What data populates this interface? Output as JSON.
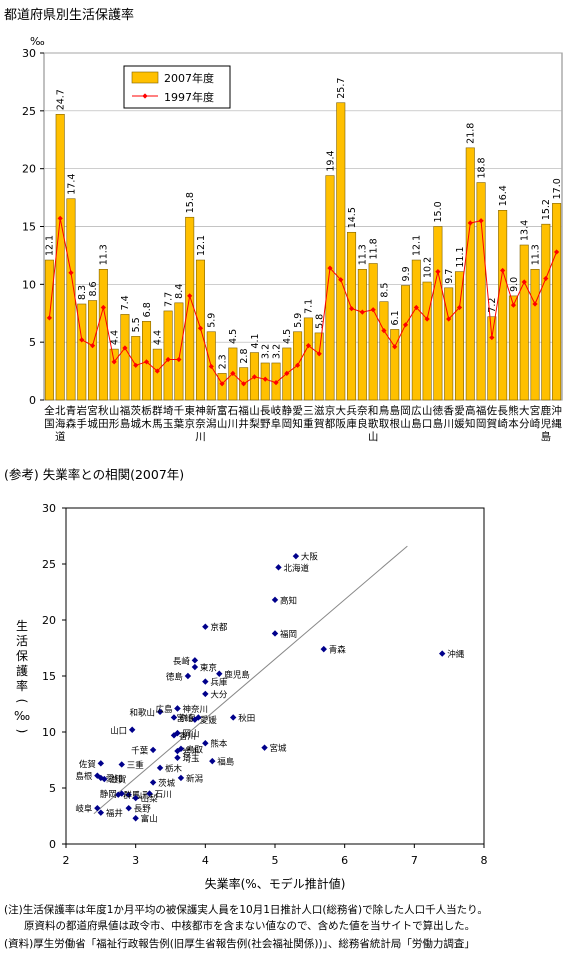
{
  "page_title": "都道府県別生活保護率",
  "reference_title": "(参考) 失業率との相関(2007年)",
  "notes": {
    "note1": "(注)生活保護率は年度1か月平均の被保護実人員を10月1日推計人口(総務省)で除した人口千人当たり。",
    "note2": "原資料の都道府県値は政令市、中核都市を含まない値なので、含めた値を当サイトで算出した。",
    "note3": "(資料)厚生労働省「福祉行政報告例(旧厚生省報告例(社会福祉関係))」、総務省統計局「労働力調査」"
  },
  "colors": {
    "bar": "#FFC000",
    "bar_stroke": "#7F6000",
    "line": "#FF0000",
    "marker": "#FF0000",
    "scatter": "#00008B",
    "trend": "#888888"
  },
  "chart_data": [
    {
      "type": "bar",
      "unit": "‰",
      "ylim": [
        0,
        30
      ],
      "yticks": [
        0,
        5,
        10,
        15,
        20,
        25,
        30
      ],
      "grid": true,
      "legend_position": "top-left",
      "categories": [
        "全国",
        "北海道",
        "青森",
        "岩手",
        "宮城",
        "秋田",
        "山形",
        "福島",
        "茨城",
        "栃木",
        "群馬",
        "埼玉",
        "千葉",
        "東京",
        "神奈川",
        "新潟",
        "富山",
        "石川",
        "福井",
        "山梨",
        "長野",
        "岐阜",
        "静岡",
        "愛知",
        "三重",
        "滋賀",
        "京都",
        "大阪",
        "兵庫",
        "奈良",
        "和歌山",
        "鳥取",
        "島根",
        "岡山",
        "広島",
        "山口",
        "徳島",
        "香川",
        "愛媛",
        "高知",
        "福岡",
        "佐賀",
        "長崎",
        "熊本",
        "大分",
        "宮崎",
        "鹿児島",
        "沖縄"
      ],
      "series": [
        {
          "name": "2007年度",
          "type": "bar",
          "values": [
            12.1,
            24.7,
            17.4,
            8.3,
            8.6,
            11.3,
            4.4,
            7.4,
            5.5,
            6.8,
            4.4,
            7.7,
            8.4,
            15.8,
            12.1,
            5.9,
            2.3,
            4.5,
            2.8,
            4.1,
            3.2,
            3.2,
            4.5,
            5.9,
            7.1,
            5.8,
            19.4,
            25.7,
            14.5,
            11.3,
            11.8,
            8.5,
            6.1,
            9.9,
            12.1,
            10.2,
            15.0,
            9.7,
            11.1,
            21.8,
            18.8,
            7.2,
            16.4,
            9.0,
            13.4,
            11.3,
            15.2,
            17.0
          ]
        },
        {
          "name": "1997年度",
          "type": "line",
          "values": [
            7.1,
            15.7,
            11.0,
            5.2,
            4.7,
            8.0,
            3.3,
            4.5,
            3.0,
            3.3,
            2.5,
            3.5,
            3.5,
            9.0,
            6.2,
            2.9,
            1.4,
            2.3,
            1.4,
            2.0,
            1.8,
            1.5,
            2.3,
            3.0,
            4.7,
            4.0,
            11.4,
            10.4,
            7.9,
            7.6,
            7.8,
            6.0,
            4.6,
            6.5,
            8.0,
            7.0,
            11.1,
            7.0,
            8.0,
            15.3,
            15.5,
            5.4,
            11.2,
            8.2,
            10.2,
            8.3,
            10.5,
            12.8
          ]
        }
      ]
    },
    {
      "type": "scatter",
      "xlabel": "失業率(%、モデル推計値)",
      "ylabel": "生活保護率(‰)",
      "xlim": [
        2,
        8
      ],
      "ylim": [
        0,
        30
      ],
      "xticks": [
        2,
        3,
        4,
        5,
        6,
        7,
        8
      ],
      "yticks": [
        0,
        5,
        10,
        15,
        20,
        25,
        30
      ],
      "trendline": {
        "x": [
          2.4,
          6.9
        ],
        "y": [
          2.7,
          26.6
        ]
      },
      "points": [
        {
          "label": "北海道",
          "x": 5.05,
          "y": 24.7
        },
        {
          "label": "青森",
          "x": 5.7,
          "y": 17.4
        },
        {
          "label": "岩手",
          "x": 3.6,
          "y": 8.3
        },
        {
          "label": "宮城",
          "x": 4.85,
          "y": 8.6
        },
        {
          "label": "秋田",
          "x": 4.4,
          "y": 11.3
        },
        {
          "label": "山形",
          "x": 2.9,
          "y": 4.4
        },
        {
          "label": "福島",
          "x": 4.1,
          "y": 7.4
        },
        {
          "label": "茨城",
          "x": 3.25,
          "y": 5.5
        },
        {
          "label": "栃木",
          "x": 3.35,
          "y": 6.8
        },
        {
          "label": "群馬",
          "x": 2.75,
          "y": 4.4
        },
        {
          "label": "埼玉",
          "x": 3.6,
          "y": 7.7
        },
        {
          "label": "千葉",
          "x": 3.25,
          "y": 8.4
        },
        {
          "label": "東京",
          "x": 3.85,
          "y": 15.8
        },
        {
          "label": "神奈川",
          "x": 3.6,
          "y": 12.1
        },
        {
          "label": "新潟",
          "x": 3.65,
          "y": 5.9
        },
        {
          "label": "富山",
          "x": 3.0,
          "y": 2.3
        },
        {
          "label": "石川",
          "x": 3.2,
          "y": 4.5
        },
        {
          "label": "福井",
          "x": 2.5,
          "y": 2.8
        },
        {
          "label": "山梨",
          "x": 3.0,
          "y": 4.1
        },
        {
          "label": "長野",
          "x": 2.9,
          "y": 3.2
        },
        {
          "label": "岐阜",
          "x": 2.45,
          "y": 3.2
        },
        {
          "label": "静岡",
          "x": 2.8,
          "y": 4.5
        },
        {
          "label": "愛知",
          "x": 2.5,
          "y": 5.9
        },
        {
          "label": "三重",
          "x": 2.8,
          "y": 7.1
        },
        {
          "label": "滋賀",
          "x": 2.55,
          "y": 5.8
        },
        {
          "label": "京都",
          "x": 4.0,
          "y": 19.4
        },
        {
          "label": "大阪",
          "x": 5.3,
          "y": 25.7
        },
        {
          "label": "兵庫",
          "x": 4.0,
          "y": 14.5
        },
        {
          "label": "奈良",
          "x": 3.55,
          "y": 11.3
        },
        {
          "label": "和歌山",
          "x": 3.35,
          "y": 11.8
        },
        {
          "label": "鳥取",
          "x": 3.65,
          "y": 8.5
        },
        {
          "label": "島根",
          "x": 2.45,
          "y": 6.1
        },
        {
          "label": "岡山",
          "x": 3.6,
          "y": 9.9
        },
        {
          "label": "広島",
          "x": 3.6,
          "y": 12.1
        },
        {
          "label": "山口",
          "x": 2.95,
          "y": 10.2
        },
        {
          "label": "徳島",
          "x": 3.75,
          "y": 15.0
        },
        {
          "label": "香川",
          "x": 3.55,
          "y": 9.7
        },
        {
          "label": "愛媛",
          "x": 3.85,
          "y": 11.1
        },
        {
          "label": "高知",
          "x": 5.0,
          "y": 21.8
        },
        {
          "label": "福岡",
          "x": 5.0,
          "y": 18.8
        },
        {
          "label": "佐賀",
          "x": 2.5,
          "y": 7.2
        },
        {
          "label": "長崎",
          "x": 3.85,
          "y": 16.4
        },
        {
          "label": "熊本",
          "x": 4.0,
          "y": 9.0
        },
        {
          "label": "大分",
          "x": 4.0,
          "y": 13.4
        },
        {
          "label": "宮崎",
          "x": 3.9,
          "y": 11.3
        },
        {
          "label": "鹿児島",
          "x": 4.2,
          "y": 15.2
        },
        {
          "label": "沖縄",
          "x": 7.4,
          "y": 17.0
        }
      ]
    }
  ]
}
